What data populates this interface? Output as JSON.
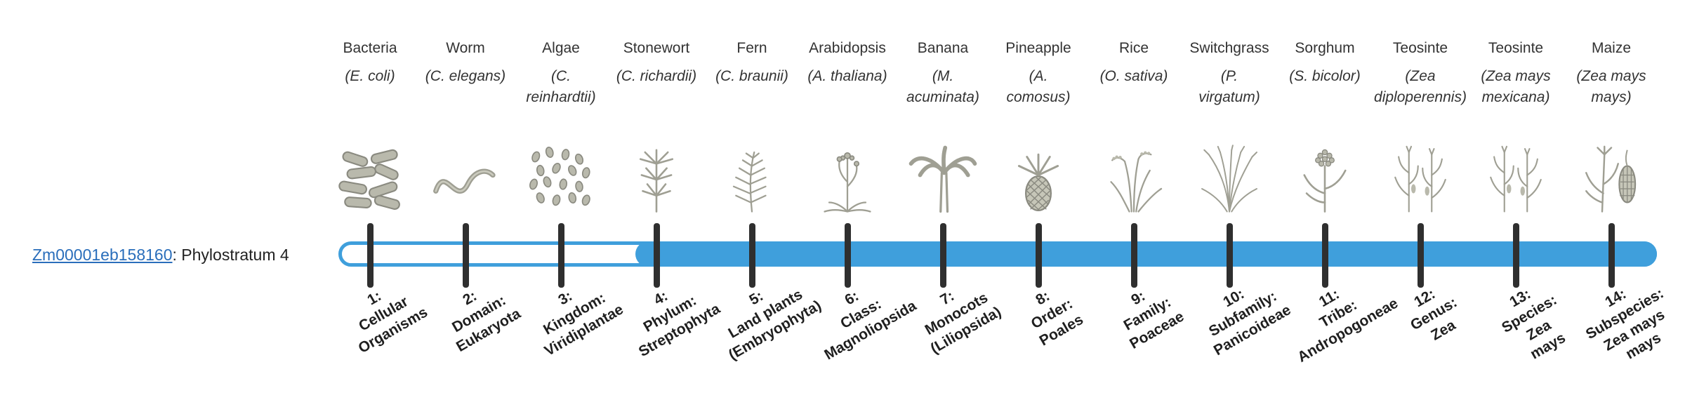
{
  "gene": {
    "id": "Zm00001eb158160",
    "suffix": ": Phylostratum 4",
    "phylostratum": 4
  },
  "bar": {
    "color": "#3f9fdc",
    "tick_color": "#2f2f2f",
    "unfilled_strata": "1-3",
    "filled_strata": "4-14"
  },
  "organisms": [
    {
      "name": "Bacteria",
      "scientific": "(E. coli)",
      "icon": "bacteria-icon"
    },
    {
      "name": "Worm",
      "scientific": "(C. elegans)",
      "icon": "worm-icon"
    },
    {
      "name": "Algae",
      "scientific": "(C.\nreinhardtii)",
      "icon": "algae-icon"
    },
    {
      "name": "Stonewort",
      "scientific": "(C. richardii)",
      "icon": "stonewort-icon"
    },
    {
      "name": "Fern",
      "scientific": "(C. braunii)",
      "icon": "fern-icon"
    },
    {
      "name": "Arabidopsis",
      "scientific": "(A. thaliana)",
      "icon": "arabidopsis-icon"
    },
    {
      "name": "Banana",
      "scientific": "(M.\nacuminata)",
      "icon": "banana-icon"
    },
    {
      "name": "Pineapple",
      "scientific": "(A.\ncomosus)",
      "icon": "pineapple-icon"
    },
    {
      "name": "Rice",
      "scientific": "(O. sativa)",
      "icon": "rice-icon"
    },
    {
      "name": "Switchgrass",
      "scientific": "(P.\nvirgatum)",
      "icon": "switchgrass-icon"
    },
    {
      "name": "Sorghum",
      "scientific": "(S. bicolor)",
      "icon": "sorghum-icon"
    },
    {
      "name": "Teosinte",
      "scientific": "(Zea\ndiploperennis)",
      "icon": "teosinte-icon"
    },
    {
      "name": "Teosinte",
      "scientific": "(Zea mays\nmexicana)",
      "icon": "teosinte-icon"
    },
    {
      "name": "Maize",
      "scientific": "(Zea mays\nmays)",
      "icon": "maize-icon"
    }
  ],
  "phylostrata": [
    {
      "label": "1:\nCellular\nOrganisms"
    },
    {
      "label": "2:\nDomain:\nEukaryota"
    },
    {
      "label": "3:\nKingdom:\nViridiplantae"
    },
    {
      "label": "4:\nPhylum:\nStreptophyta"
    },
    {
      "label": "5:\nLand plants\n(Embryophyta)"
    },
    {
      "label": "6:\nClass:\nMagnoliopsida"
    },
    {
      "label": "7:\nMonocots\n(Liliopsida)"
    },
    {
      "label": "8:\nOrder:\nPoales"
    },
    {
      "label": "9:\nFamily:\nPoaceae"
    },
    {
      "label": "10:\nSubfamily:\nPanicoideae"
    },
    {
      "label": "11:\nTribe:\nAndropogoneae"
    },
    {
      "label": "12:\nGenus:\nZea"
    },
    {
      "label": "13:\nSpecies:\nZea\nmays"
    },
    {
      "label": "14:\nSubspecies:\nZea mays\nmays"
    }
  ]
}
